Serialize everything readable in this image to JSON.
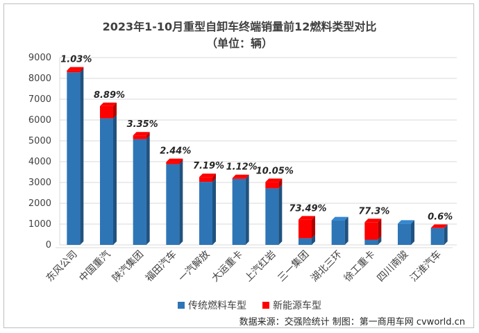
{
  "chart_data": {
    "type": "bar",
    "stacked": true,
    "title": "2023年1-10月重型自卸车终端销量前12燃料类型对比",
    "subtitle": "（单位：辆）",
    "ylim": [
      0,
      9000
    ],
    "yticks": [
      0,
      1000,
      2000,
      3000,
      4000,
      5000,
      6000,
      7000,
      8000,
      9000
    ],
    "categories": [
      "东风公司",
      "中国重汽",
      "陕汽集团",
      "福田汽车",
      "一汽解放",
      "大运重卡",
      "上汽红岩",
      "三一集团",
      "湖北三环",
      "徐工重卡",
      "四川南骏",
      "江淮汽车"
    ],
    "series": [
      {
        "name": "传统燃料车型",
        "color": "#2e75b6",
        "values": [
          8290,
          6080,
          5080,
          3880,
          3030,
          3170,
          2720,
          320,
          1180,
          250,
          1020,
          810
        ]
      },
      {
        "name": "新能源车型",
        "color": "#ff0000",
        "values": [
          90,
          590,
          180,
          100,
          230,
          40,
          300,
          900,
          0,
          840,
          0,
          5
        ]
      }
    ],
    "annotations": [
      "1.03%",
      "8.89%",
      "3.35%",
      "2.44%",
      "7.19%",
      "1.12%",
      "10.05%",
      "73.49%",
      "",
      "77.3%",
      "",
      "0.6%"
    ],
    "legend_position": "bottom",
    "grid": true
  },
  "source_text": "数据来源：交强险统计  制图：第一商用车网 cvworld.cn"
}
